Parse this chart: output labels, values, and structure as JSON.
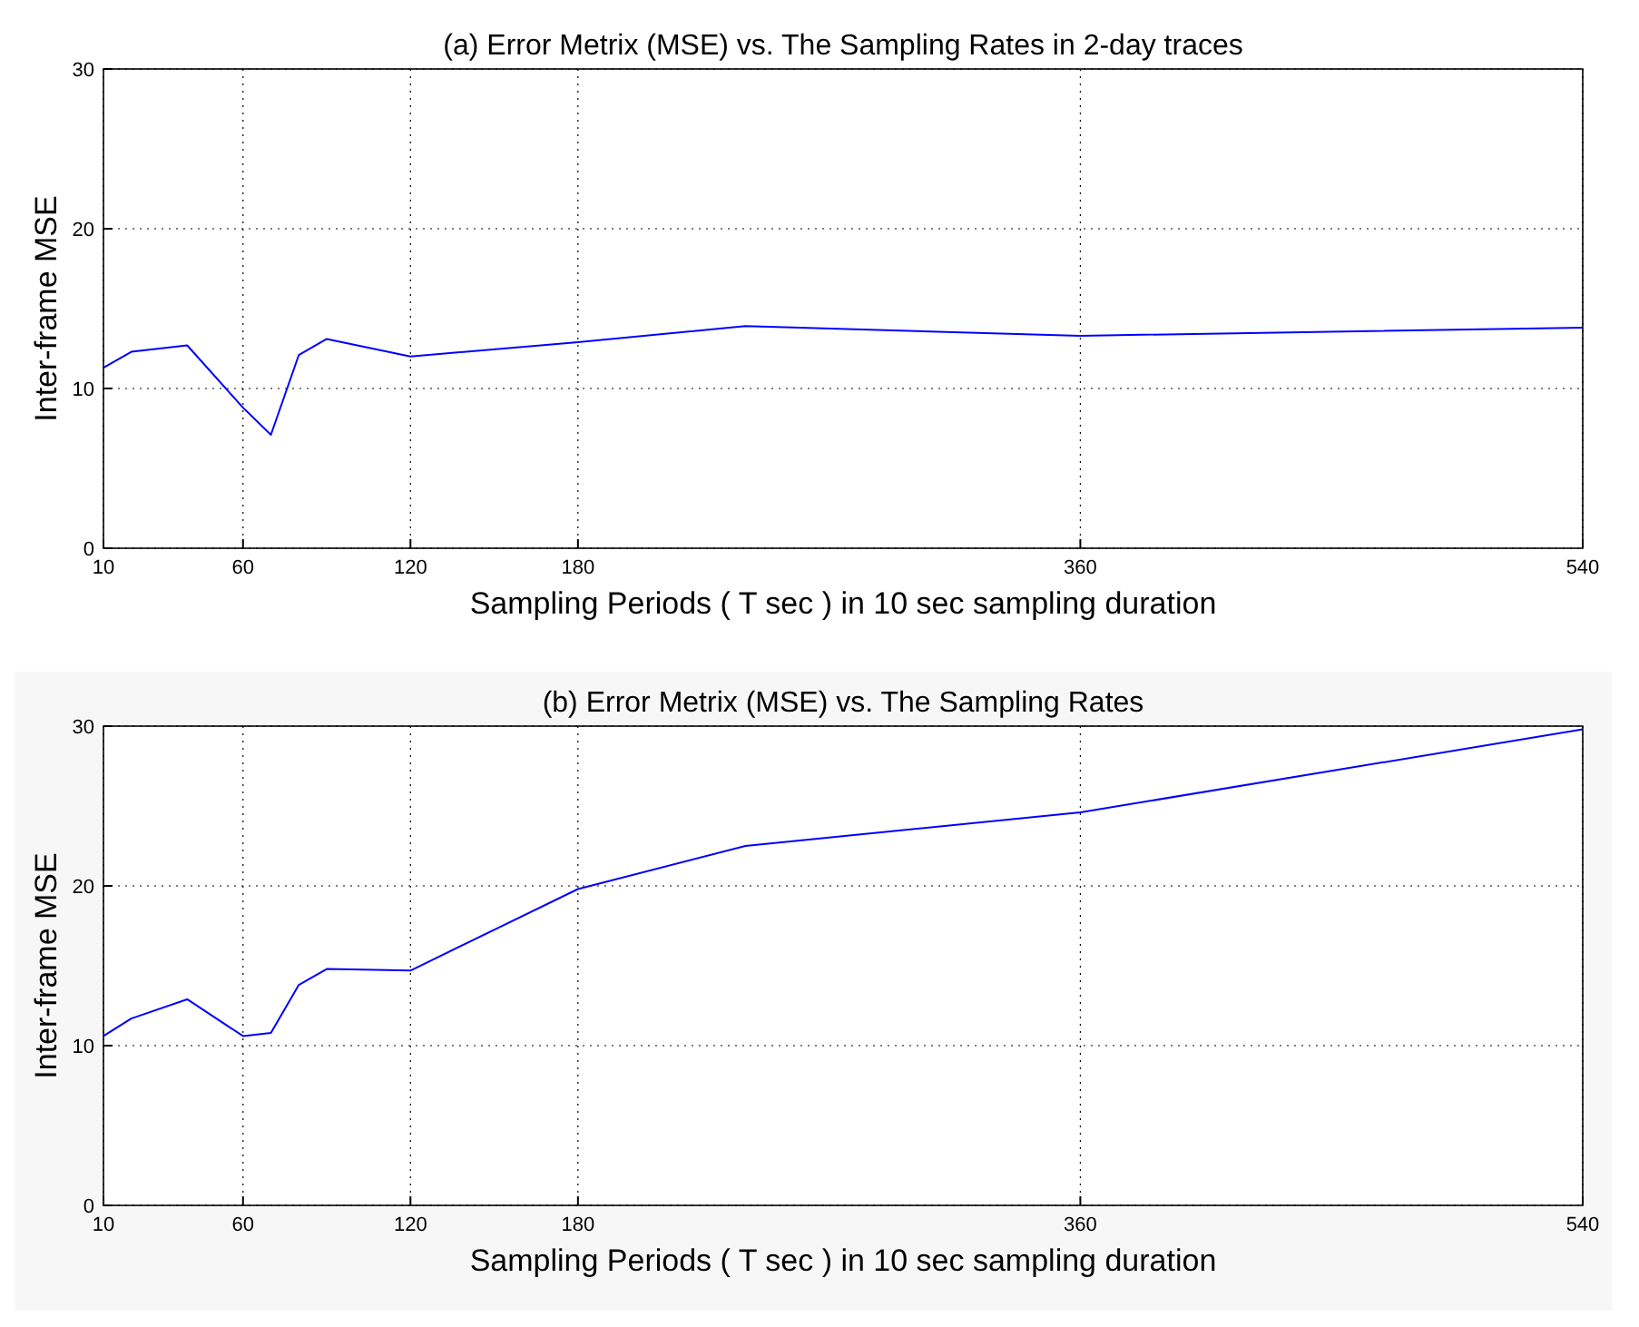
{
  "chart_data": [
    {
      "type": "line",
      "title": "(a) Error Metrix (MSE)  vs. The Sampling Rates in 2-day traces",
      "xlabel": "Sampling Periods ( T sec ) in 10 sec sampling duration",
      "ylabel": "Inter-frame MSE",
      "x": [
        10,
        20,
        40,
        60,
        70,
        80,
        90,
        120,
        180,
        240,
        360,
        540
      ],
      "series": [
        {
          "color": "#0000ff",
          "values": [
            11.3,
            12.3,
            12.7,
            8.8,
            7.1,
            12.1,
            13.1,
            12.0,
            12.9,
            13.9,
            13.3,
            13.8
          ]
        }
      ],
      "xlim": [
        10,
        540
      ],
      "xticks": [
        10,
        60,
        120,
        180,
        360,
        540
      ],
      "ylim": [
        0,
        30
      ],
      "yticks": [
        0,
        10,
        20,
        30
      ],
      "grid": true,
      "line_style": "solid"
    },
    {
      "type": "line",
      "title": "(b) Error Metrix (MSE)  vs. The Sampling Rates",
      "xlabel": "Sampling Periods ( T sec ) in 10 sec sampling duration",
      "ylabel": "Inter-frame MSE",
      "x": [
        10,
        20,
        40,
        60,
        70,
        80,
        90,
        120,
        180,
        240,
        360,
        540
      ],
      "series": [
        {
          "color": "#0000ff",
          "values": [
            10.6,
            11.7,
            12.9,
            10.6,
            10.8,
            13.8,
            14.8,
            14.7,
            19.8,
            22.5,
            24.6,
            29.8
          ]
        }
      ],
      "xlim": [
        10,
        540
      ],
      "xticks": [
        10,
        60,
        120,
        180,
        360,
        540
      ],
      "ylim": [
        0,
        30
      ],
      "yticks": [
        0,
        10,
        20,
        30
      ],
      "grid": true,
      "line_style": "solid"
    }
  ]
}
